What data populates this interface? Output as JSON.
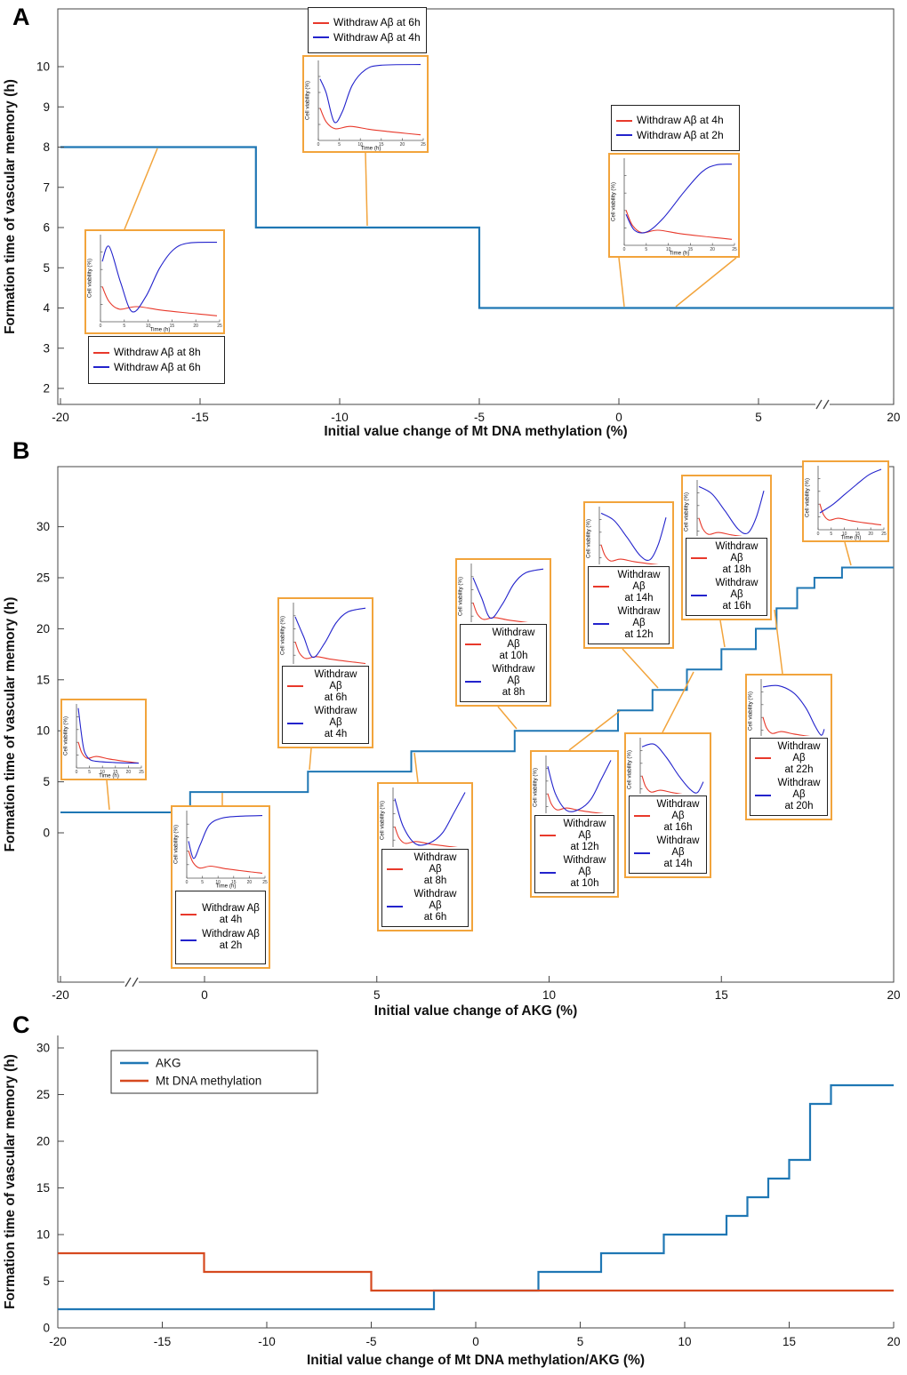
{
  "figure": {
    "panel_labels": [
      "A",
      "B",
      "C"
    ]
  },
  "inset_axis": {
    "xlabel": "Time (h)",
    "ylabel": "Cell viability (%)",
    "xticks": [
      0,
      5,
      10,
      15,
      20,
      25
    ]
  },
  "colors": {
    "step_blue": "#1f77b4",
    "step_red": "#d6491f",
    "inset_blue": "#2323cc",
    "inset_red": "#e8392b",
    "inset_border": "#f2a43c"
  },
  "curve_shapes": {
    "red_default": [
      [
        0,
        0.4
      ],
      [
        0.06,
        0.22
      ],
      [
        0.15,
        0.13
      ],
      [
        0.3,
        0.16
      ],
      [
        0.5,
        0.12
      ],
      [
        0.7,
        0.09
      ],
      [
        0.85,
        0.07
      ],
      [
        1,
        0.05
      ]
    ],
    "early_dip": [
      [
        0,
        0.78
      ],
      [
        0.06,
        0.6
      ],
      [
        0.14,
        0.22
      ],
      [
        0.22,
        0.35
      ],
      [
        0.32,
        0.7
      ],
      [
        0.45,
        0.9
      ],
      [
        0.6,
        0.96
      ],
      [
        1,
        0.97
      ]
    ],
    "rise_late": [
      [
        0,
        0.35
      ],
      [
        0.08,
        0.16
      ],
      [
        0.2,
        0.14
      ],
      [
        0.35,
        0.3
      ],
      [
        0.55,
        0.62
      ],
      [
        0.72,
        0.86
      ],
      [
        0.85,
        0.94
      ],
      [
        1,
        0.95
      ]
    ],
    "deep_dip": [
      [
        0,
        0.7
      ],
      [
        0.06,
        0.88
      ],
      [
        0.16,
        0.45
      ],
      [
        0.26,
        0.1
      ],
      [
        0.38,
        0.28
      ],
      [
        0.5,
        0.62
      ],
      [
        0.62,
        0.84
      ],
      [
        0.75,
        0.92
      ],
      [
        1,
        0.93
      ]
    ],
    "decay": [
      [
        0,
        0.96
      ],
      [
        0.05,
        0.55
      ],
      [
        0.1,
        0.25
      ],
      [
        0.18,
        0.12
      ],
      [
        0.3,
        0.08
      ],
      [
        0.6,
        0.06
      ],
      [
        1,
        0.05
      ]
    ],
    "quick_recover": [
      [
        0,
        0.55
      ],
      [
        0.07,
        0.28
      ],
      [
        0.16,
        0.5
      ],
      [
        0.28,
        0.8
      ],
      [
        0.45,
        0.91
      ],
      [
        0.7,
        0.94
      ],
      [
        1,
        0.95
      ]
    ],
    "v_recover": [
      [
        0,
        0.8
      ],
      [
        0.12,
        0.48
      ],
      [
        0.25,
        0.15
      ],
      [
        0.42,
        0.38
      ],
      [
        0.58,
        0.7
      ],
      [
        0.75,
        0.88
      ],
      [
        1,
        0.94
      ]
    ],
    "late_recover": [
      [
        0,
        0.85
      ],
      [
        0.12,
        0.4
      ],
      [
        0.3,
        0.12
      ],
      [
        0.5,
        0.14
      ],
      [
        0.68,
        0.3
      ],
      [
        0.84,
        0.62
      ],
      [
        1,
        0.95
      ]
    ],
    "late_dip_recover": [
      [
        0,
        0.92
      ],
      [
        0.2,
        0.8
      ],
      [
        0.4,
        0.52
      ],
      [
        0.6,
        0.22
      ],
      [
        0.75,
        0.15
      ],
      [
        0.88,
        0.4
      ],
      [
        1,
        0.85
      ]
    ],
    "decline_late": [
      [
        0,
        0.88
      ],
      [
        0.2,
        0.92
      ],
      [
        0.4,
        0.7
      ],
      [
        0.6,
        0.4
      ],
      [
        0.78,
        0.18
      ],
      [
        0.9,
        0.12
      ],
      [
        1,
        0.3
      ]
    ],
    "decline_end": [
      [
        0,
        0.9
      ],
      [
        0.25,
        0.92
      ],
      [
        0.5,
        0.8
      ],
      [
        0.7,
        0.55
      ],
      [
        0.85,
        0.25
      ],
      [
        0.95,
        0.1
      ],
      [
        1,
        0.2
      ]
    ],
    "rise": [
      [
        0,
        0.25
      ],
      [
        0.2,
        0.38
      ],
      [
        0.4,
        0.55
      ],
      [
        0.6,
        0.72
      ],
      [
        0.8,
        0.88
      ],
      [
        1,
        0.97
      ]
    ]
  },
  "chart_data": [
    {
      "panel": "A",
      "type": "step",
      "xlabel": "Initial value change of Mt DNA methylation (%)",
      "ylabel": "Formation time of vascular memory (h)",
      "xticks": [
        -20,
        -15,
        -10,
        -5,
        0,
        5
      ],
      "xtick_after_break": 20,
      "yticks": [
        2,
        3,
        4,
        5,
        6,
        7,
        8,
        9,
        10
      ],
      "xlim": [
        -20,
        20
      ],
      "axis_break_x": true,
      "series": [
        {
          "name": "Mt DNA methylation",
          "color": "#1f77b4",
          "steps": [
            {
              "x": -20,
              "y": 8
            },
            {
              "x": -13,
              "y": 6
            },
            {
              "x": -5,
              "y": 4
            }
          ],
          "x_end": 20
        }
      ],
      "insets": [
        {
          "id": "a-top",
          "curve_blue": "early_dip",
          "curve_red": "red_default",
          "legend": [
            {
              "color": "#e8392b",
              "label": "Withdraw Aβ at 6h"
            },
            {
              "color": "#2323cc",
              "label": "Withdraw Aβ at 4h"
            }
          ]
        },
        {
          "id": "a-right",
          "curve_blue": "rise_late",
          "curve_red": "red_default",
          "legend": [
            {
              "color": "#e8392b",
              "label": "Withdraw Aβ at 4h"
            },
            {
              "color": "#2323cc",
              "label": "Withdraw Aβ at 2h"
            }
          ]
        },
        {
          "id": "a-left",
          "curve_blue": "deep_dip",
          "curve_red": "red_default",
          "legend": [
            {
              "color": "#e8392b",
              "label": "Withdraw Aβ at 8h"
            },
            {
              "color": "#2323cc",
              "label": "Withdraw Aβ at 6h"
            }
          ]
        }
      ]
    },
    {
      "panel": "B",
      "type": "step",
      "xlabel": "Initial value change of AKG (%)",
      "ylabel": "Formation time of vascular memory (h)",
      "xticks": [
        -20,
        0,
        5,
        10,
        15,
        20
      ],
      "yticks": [
        0,
        5,
        10,
        15,
        20,
        25,
        30
      ],
      "xlim": [
        -20,
        20
      ],
      "axis_break_x": true,
      "series": [
        {
          "name": "AKG",
          "color": "#1f77b4",
          "steps": [
            {
              "x": -20,
              "y": 2
            },
            {
              "x": -2,
              "y": 4
            },
            {
              "x": 3,
              "y": 6
            },
            {
              "x": 6,
              "y": 8
            },
            {
              "x": 9,
              "y": 10
            },
            {
              "x": 12,
              "y": 12
            },
            {
              "x": 13,
              "y": 14
            },
            {
              "x": 14,
              "y": 16
            },
            {
              "x": 15,
              "y": 18
            },
            {
              "x": 16,
              "y": 20
            },
            {
              "x": 16.6,
              "y": 22
            },
            {
              "x": 17.2,
              "y": 24
            },
            {
              "x": 17.7,
              "y": 25
            },
            {
              "x": 18.5,
              "y": 26
            }
          ],
          "x_end": 20
        }
      ],
      "insets": [
        {
          "id": "b-far-left",
          "curve_blue": "decay",
          "curve_red": "red_default"
        },
        {
          "id": "b-4-2",
          "curve_blue": "quick_recover",
          "curve_red": "red_default",
          "legend": [
            {
              "color": "#e8392b",
              "label": "Withdraw Aβ\nat 4h"
            },
            {
              "color": "#2323cc",
              "label": "Withdraw Aβ\nat 2h"
            }
          ]
        },
        {
          "id": "b-6-4",
          "curve_blue": "v_recover",
          "curve_red": "red_default",
          "legend": [
            {
              "color": "#e8392b",
              "label": "Withdraw Aβ\nat 6h"
            },
            {
              "color": "#2323cc",
              "label": "Withdraw Aβ\nat 4h"
            }
          ]
        },
        {
          "id": "b-8-6",
          "curve_blue": "late_recover",
          "curve_red": "red_default",
          "legend": [
            {
              "color": "#e8392b",
              "label": "Withdraw Aβ\nat 8h"
            },
            {
              "color": "#2323cc",
              "label": "Withdraw Aβ\nat 6h"
            }
          ]
        },
        {
          "id": "b-10-8",
          "curve_blue": "v_recover",
          "curve_red": "red_default",
          "legend": [
            {
              "color": "#e8392b",
              "label": "Withdraw Aβ\nat 10h"
            },
            {
              "color": "#2323cc",
              "label": "Withdraw Aβ\nat 8h"
            }
          ]
        },
        {
          "id": "b-12-10",
          "curve_blue": "late_recover",
          "curve_red": "red_default",
          "legend": [
            {
              "color": "#e8392b",
              "label": "Withdraw Aβ\nat 12h"
            },
            {
              "color": "#2323cc",
              "label": "Withdraw Aβ\nat 10h"
            }
          ]
        },
        {
          "id": "b-14-12",
          "curve_blue": "late_dip_recover",
          "curve_red": "red_default",
          "legend": [
            {
              "color": "#e8392b",
              "label": "Withdraw Aβ\nat 14h"
            },
            {
              "color": "#2323cc",
              "label": "Withdraw Aβ\nat 12h"
            }
          ]
        },
        {
          "id": "b-16-14",
          "curve_blue": "decline_late",
          "curve_red": "red_default",
          "legend": [
            {
              "color": "#e8392b",
              "label": "Withdraw Aβ\nat 16h"
            },
            {
              "color": "#2323cc",
              "label": "Withdraw Aβ\nat 14h"
            }
          ]
        },
        {
          "id": "b-18-16",
          "curve_blue": "late_dip_recover",
          "curve_red": "red_default",
          "legend": [
            {
              "color": "#e8392b",
              "label": "Withdraw Aβ\nat 18h"
            },
            {
              "color": "#2323cc",
              "label": "Withdraw Aβ\nat 16h"
            }
          ]
        },
        {
          "id": "b-22-20",
          "curve_blue": "decline_end",
          "curve_red": "red_default",
          "legend": [
            {
              "color": "#e8392b",
              "label": "Withdraw Aβ\nat 22h"
            },
            {
              "color": "#2323cc",
              "label": "Withdraw Aβ\nat 20h"
            }
          ]
        },
        {
          "id": "b-top-right",
          "curve_blue": "rise",
          "curve_red": "red_default"
        }
      ]
    },
    {
      "panel": "C",
      "type": "step",
      "xlabel": "Initial value change of Mt DNA methylation/AKG (%)",
      "ylabel": "Formation time of vascular memory (h)",
      "xticks": [
        -20,
        -15,
        -10,
        -5,
        0,
        5,
        10,
        15,
        20
      ],
      "yticks": [
        0,
        5,
        10,
        15,
        20,
        25,
        30
      ],
      "xlim": [
        -20,
        20
      ],
      "ylim": [
        0,
        30
      ],
      "legend": [
        {
          "label": "AKG",
          "color": "#1f77b4"
        },
        {
          "label": "Mt DNA methylation",
          "color": "#d6491f"
        }
      ],
      "series": [
        {
          "name": "AKG",
          "color": "#1f77b4",
          "steps": [
            {
              "x": -20,
              "y": 2
            },
            {
              "x": -2,
              "y": 4
            },
            {
              "x": 3,
              "y": 6
            },
            {
              "x": 6,
              "y": 8
            },
            {
              "x": 9,
              "y": 10
            },
            {
              "x": 12,
              "y": 12
            },
            {
              "x": 13,
              "y": 14
            },
            {
              "x": 14,
              "y": 16
            },
            {
              "x": 15,
              "y": 18
            },
            {
              "x": 16,
              "y": 24
            },
            {
              "x": 17,
              "y": 26
            }
          ],
          "x_end": 20
        },
        {
          "name": "Mt DNA methylation",
          "color": "#d6491f",
          "steps": [
            {
              "x": -20,
              "y": 8
            },
            {
              "x": -13,
              "y": 6
            },
            {
              "x": -5,
              "y": 4
            }
          ],
          "x_end": 20
        }
      ]
    }
  ]
}
